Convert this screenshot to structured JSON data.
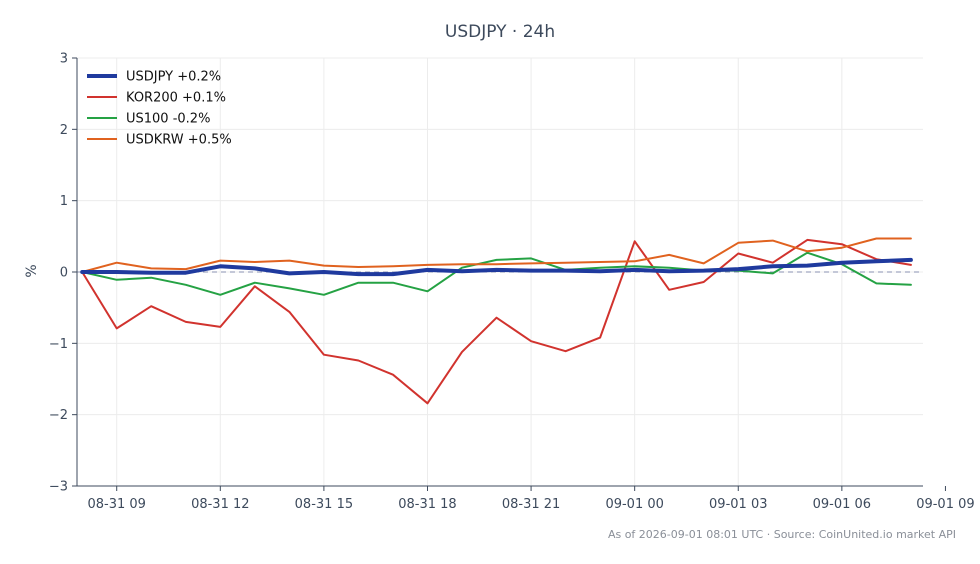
{
  "chart_data": {
    "type": "line",
    "title": "USDJPY · 24h",
    "ylabel": "%",
    "ylim": [
      -3,
      3
    ],
    "y_ticks": [
      {
        "value": 3,
        "label": "3"
      },
      {
        "value": 2,
        "label": "2"
      },
      {
        "value": 1,
        "label": "1"
      },
      {
        "value": 0,
        "label": "0"
      },
      {
        "value": -1,
        "label": "−1"
      },
      {
        "value": -2,
        "label": "−2"
      },
      {
        "value": -3,
        "label": "−3"
      }
    ],
    "x_range_hours": [
      -0.15,
      24.35
    ],
    "x_ticks": [
      {
        "value": 1,
        "label": "08-31 09"
      },
      {
        "value": 4,
        "label": "08-31 12"
      },
      {
        "value": 7,
        "label": "08-31 15"
      },
      {
        "value": 10,
        "label": "08-31 18"
      },
      {
        "value": 13,
        "label": "08-31 21"
      },
      {
        "value": 16,
        "label": "09-01 00"
      },
      {
        "value": 19,
        "label": "09-01 03"
      },
      {
        "value": 22,
        "label": "09-01 06"
      },
      {
        "value": 25,
        "label": "09-01 09"
      }
    ],
    "x_hours": [
      0,
      1,
      2,
      3,
      4,
      5,
      6,
      7,
      8,
      9,
      10,
      11,
      12,
      13,
      14,
      15,
      16,
      17,
      18,
      19,
      20,
      21,
      22,
      23,
      24
    ],
    "grid": true,
    "zero_line": true,
    "legend_position": "top-left",
    "series": [
      {
        "name": "USDJPY +0.2%",
        "color": "#1f3a9e",
        "width": 4,
        "values": [
          0.0,
          0.0,
          -0.01,
          -0.01,
          0.08,
          0.05,
          -0.02,
          0.0,
          -0.03,
          -0.03,
          0.03,
          0.01,
          0.03,
          0.02,
          0.02,
          0.01,
          0.03,
          0.01,
          0.02,
          0.04,
          0.08,
          0.09,
          0.13,
          0.15,
          0.17
        ]
      },
      {
        "name": "KOR200 +0.1%",
        "color": "#d1332e",
        "width": 2,
        "values": [
          0.0,
          -0.79,
          -0.48,
          -0.7,
          -0.77,
          -0.2,
          -0.56,
          -1.16,
          -1.24,
          -1.44,
          -1.84,
          -1.12,
          -0.64,
          -0.97,
          -1.11,
          -0.92,
          0.43,
          -0.25,
          -0.14,
          0.26,
          0.13,
          0.45,
          0.39,
          0.18,
          0.1
        ]
      },
      {
        "name": "US100 -0.2%",
        "color": "#25a244",
        "width": 2,
        "values": [
          0.0,
          -0.11,
          -0.08,
          -0.18,
          -0.32,
          -0.15,
          -0.23,
          -0.32,
          -0.15,
          -0.15,
          -0.27,
          0.06,
          0.17,
          0.19,
          0.03,
          0.06,
          0.08,
          0.06,
          0.02,
          0.02,
          -0.02,
          0.27,
          0.11,
          -0.16,
          -0.18
        ]
      },
      {
        "name": "USDKRW +0.5%",
        "color": "#e0621f",
        "width": 2,
        "values": [
          0.0,
          0.13,
          0.05,
          0.04,
          0.16,
          0.14,
          0.16,
          0.09,
          0.07,
          0.08,
          0.1,
          0.11,
          0.11,
          0.12,
          0.13,
          0.14,
          0.15,
          0.24,
          0.12,
          0.41,
          0.44,
          0.29,
          0.34,
          0.47,
          0.47
        ]
      }
    ]
  },
  "footer": "As of 2026-09-01 08:01 UTC · Source: CoinUnited.io market API"
}
